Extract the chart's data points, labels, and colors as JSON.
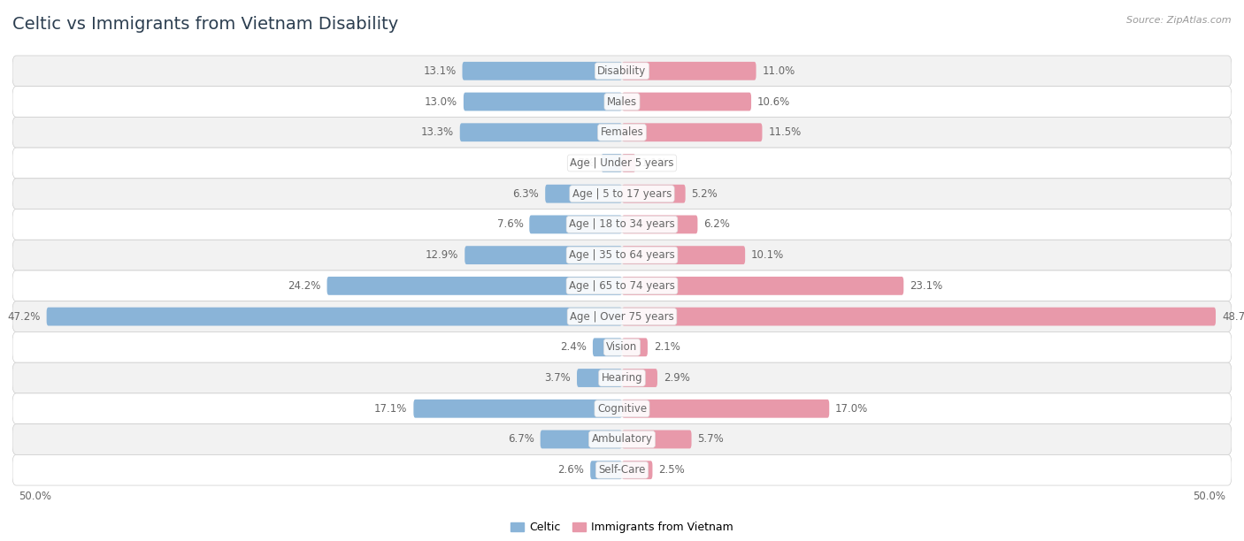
{
  "title": "Celtic vs Immigrants from Vietnam Disability",
  "source": "Source: ZipAtlas.com",
  "categories": [
    "Disability",
    "Males",
    "Females",
    "Age | Under 5 years",
    "Age | 5 to 17 years",
    "Age | 18 to 34 years",
    "Age | 35 to 64 years",
    "Age | 65 to 74 years",
    "Age | Over 75 years",
    "Vision",
    "Hearing",
    "Cognitive",
    "Ambulatory",
    "Self-Care"
  ],
  "celtic_values": [
    13.1,
    13.0,
    13.3,
    1.7,
    6.3,
    7.6,
    12.9,
    24.2,
    47.2,
    2.4,
    3.7,
    17.1,
    6.7,
    2.6
  ],
  "vietnam_values": [
    11.0,
    10.6,
    11.5,
    1.1,
    5.2,
    6.2,
    10.1,
    23.1,
    48.7,
    2.1,
    2.9,
    17.0,
    5.7,
    2.5
  ],
  "celtic_color": "#8ab4d8",
  "vietnam_color": "#e899aa",
  "celtic_label": "Celtic",
  "vietnam_label": "Immigrants from Vietnam",
  "x_max": 50.0,
  "bg_color": "#ffffff",
  "row_bg_colors": [
    "#f2f2f2",
    "#ffffff"
  ],
  "bar_height": 0.6,
  "title_fontsize": 14,
  "label_fontsize": 8.5,
  "value_fontsize": 8.5,
  "legend_fontsize": 9,
  "title_color": "#2c3e50",
  "source_color": "#999999",
  "value_color": "#666666",
  "cat_label_color": "#666666"
}
